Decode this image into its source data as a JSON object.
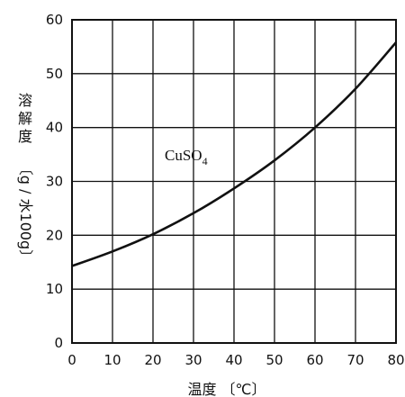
{
  "chart_data": {
    "type": "line",
    "xlabel": "温度 〔℃〕",
    "ylabel": "溶解度〔g/水100g〕",
    "ylabel_parts": [
      "溶",
      "解",
      "度",
      "〔g / 水100g〕"
    ],
    "xlim": [
      0,
      80
    ],
    "ylim": [
      0,
      60
    ],
    "xticks": [
      "0",
      "10",
      "20",
      "30",
      "40",
      "50",
      "60",
      "70",
      "80"
    ],
    "yticks": [
      "0",
      "10",
      "20",
      "30",
      "40",
      "50",
      "60"
    ],
    "grid": true,
    "annotation": {
      "text": "CuSO",
      "subscript": "4"
    },
    "series": [
      {
        "name": "CuSO4",
        "x": [
          0,
          10,
          20,
          30,
          40,
          50,
          60,
          70,
          80
        ],
        "y": [
          14.3,
          17.0,
          20.2,
          24.1,
          28.7,
          33.9,
          40.0,
          47.2,
          55.8
        ]
      }
    ],
    "colors": {
      "line": "#111111",
      "grid": "#111111"
    }
  }
}
